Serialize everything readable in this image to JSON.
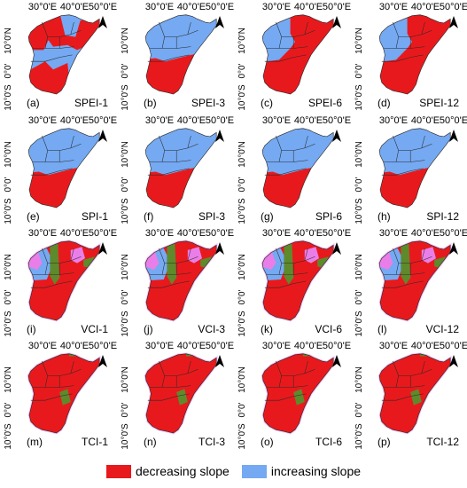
{
  "colors": {
    "decreasing": "#e8191c",
    "increasing": "#75a9f2",
    "transition": "#5e8a2c",
    "moderate": "#ea7ee8",
    "pale": "#d9f4fa",
    "border": "#2a2a2a"
  },
  "axis_labels": {
    "lon": [
      "30°0'E",
      "40°0'E",
      "50°0'E"
    ],
    "lat": [
      "10°0'N",
      "0°0'",
      "10°0'S"
    ]
  },
  "north_icon": "north-arrow-icon",
  "rows": [
    {
      "index": "SPEI",
      "panels": [
        {
          "letter": "(a)",
          "label": "SPEI-1",
          "pattern": "north_red"
        },
        {
          "letter": "(b)",
          "label": "SPEI-3",
          "pattern": "south_red"
        },
        {
          "letter": "(c)",
          "label": "SPEI-6",
          "pattern": "east_red"
        },
        {
          "letter": "(d)",
          "label": "SPEI-12",
          "pattern": "east_red"
        }
      ]
    },
    {
      "index": "SPI",
      "panels": [
        {
          "letter": "(e)",
          "label": "SPI-1",
          "pattern": "south_red"
        },
        {
          "letter": "(f)",
          "label": "SPI-3",
          "pattern": "south_red"
        },
        {
          "letter": "(g)",
          "label": "SPI-6",
          "pattern": "south_red"
        },
        {
          "letter": "(h)",
          "label": "SPI-12",
          "pattern": "south_red"
        }
      ]
    },
    {
      "index": "VCI",
      "panels": [
        {
          "letter": "(i)",
          "label": "VCI-1",
          "pattern": "vci"
        },
        {
          "letter": "(j)",
          "label": "VCI-3",
          "pattern": "vci"
        },
        {
          "letter": "(k)",
          "label": "VCI-6",
          "pattern": "vci"
        },
        {
          "letter": "(l)",
          "label": "VCI-12",
          "pattern": "vci"
        }
      ]
    },
    {
      "index": "TCI",
      "panels": [
        {
          "letter": "(m)",
          "label": "TCI-1",
          "pattern": "all_red"
        },
        {
          "letter": "(n)",
          "label": "TCI-3",
          "pattern": "all_red"
        },
        {
          "letter": "(o)",
          "label": "TCI-6",
          "pattern": "all_red"
        },
        {
          "letter": "(p)",
          "label": "TCI-12",
          "pattern": "all_red"
        }
      ]
    }
  ],
  "legend": {
    "decreasing_label": "decreasing slope",
    "increasing_label": "increasing slope"
  }
}
